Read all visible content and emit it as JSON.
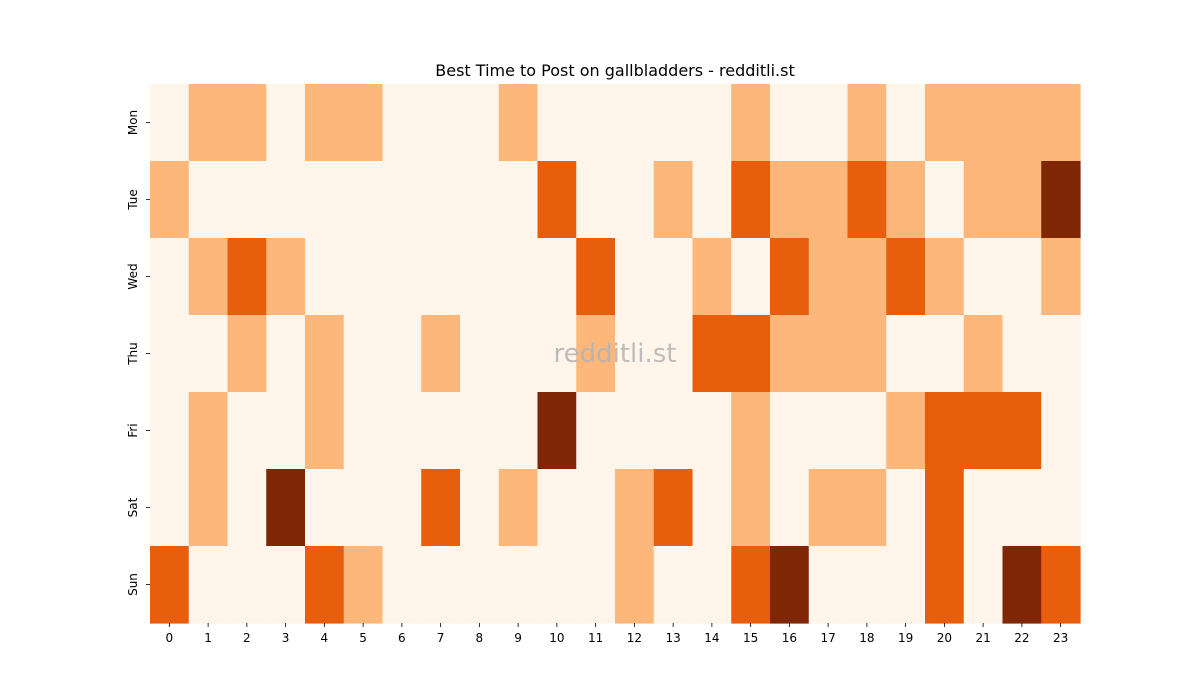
{
  "chart_data": {
    "type": "heatmap",
    "title": "Best Time to Post on gallbladders - redditli.st",
    "watermark": "redditli.st",
    "xlabel": "",
    "ylabel": "",
    "x_categories": [
      "0",
      "1",
      "2",
      "3",
      "4",
      "5",
      "6",
      "7",
      "8",
      "9",
      "10",
      "11",
      "12",
      "13",
      "14",
      "15",
      "16",
      "17",
      "18",
      "19",
      "20",
      "21",
      "22",
      "23"
    ],
    "y_categories": [
      "Mon",
      "Tue",
      "Wed",
      "Thu",
      "Fri",
      "Sat",
      "Sun"
    ],
    "values": [
      [
        0,
        1,
        1,
        0,
        1,
        1,
        0,
        0,
        0,
        1,
        0,
        0,
        0,
        0,
        0,
        1,
        0,
        0,
        1,
        0,
        1,
        1,
        1,
        1
      ],
      [
        1,
        0,
        0,
        0,
        0,
        0,
        0,
        0,
        0,
        0,
        2,
        0,
        0,
        1,
        0,
        2,
        1,
        1,
        2,
        1,
        0,
        1,
        1,
        3
      ],
      [
        0,
        1,
        2,
        1,
        0,
        0,
        0,
        0,
        0,
        0,
        0,
        2,
        0,
        0,
        1,
        0,
        2,
        1,
        1,
        2,
        1,
        0,
        0,
        1
      ],
      [
        0,
        0,
        1,
        0,
        1,
        0,
        0,
        1,
        0,
        0,
        0,
        1,
        0,
        0,
        2,
        2,
        1,
        1,
        1,
        0,
        0,
        1,
        0,
        0
      ],
      [
        0,
        1,
        0,
        0,
        1,
        0,
        0,
        0,
        0,
        0,
        3,
        0,
        0,
        0,
        0,
        1,
        0,
        0,
        0,
        1,
        2,
        2,
        2,
        0
      ],
      [
        0,
        1,
        0,
        3,
        0,
        0,
        0,
        2,
        0,
        1,
        0,
        0,
        1,
        2,
        0,
        1,
        0,
        1,
        1,
        0,
        2,
        0,
        0,
        0
      ],
      [
        2,
        0,
        0,
        0,
        2,
        1,
        0,
        0,
        0,
        0,
        0,
        0,
        1,
        0,
        0,
        2,
        3,
        0,
        0,
        0,
        2,
        0,
        3,
        2
      ]
    ],
    "colorscale": [
      "#fff5eb",
      "#fdb77a",
      "#e95e0d",
      "#7f2704"
    ],
    "colormap": "Oranges",
    "colorbar": false,
    "grid": false
  }
}
